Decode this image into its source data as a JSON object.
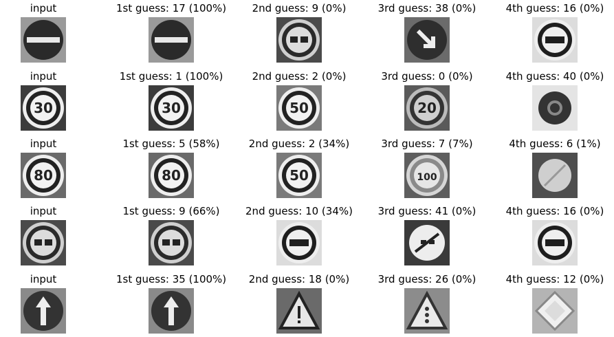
{
  "rows": [
    {
      "input": "input",
      "guesses": [
        "1st guess: 17 (100%)",
        "2nd guess: 9 (0%)",
        "3rd guess: 38 (0%)",
        "4th guess: 16 (0%)"
      ],
      "thumb_icons": [
        "no-entry-sign-icon",
        "no-entry-sign-icon",
        "no-passing-sign-icon",
        "keep-right-sign-icon",
        "no-trucks-passing-sign-icon"
      ]
    },
    {
      "input": "input",
      "guesses": [
        "1st guess: 1 (100%)",
        "2nd guess: 2 (0%)",
        "3rd guess: 0 (0%)",
        "4th guess: 40 (0%)"
      ],
      "thumb_icons": [
        "speed-30-sign-icon",
        "speed-30-sign-icon",
        "speed-50-sign-icon",
        "speed-20-sign-icon",
        "roundabout-sign-icon"
      ]
    },
    {
      "input": "input",
      "guesses": [
        "1st guess: 5 (58%)",
        "2nd guess: 2 (34%)",
        "3rd guess: 7 (7%)",
        "4th guess: 6 (1%)"
      ],
      "thumb_icons": [
        "speed-80-sign-icon",
        "speed-80-sign-icon",
        "speed-50-sign-icon",
        "speed-100-sign-icon",
        "end-speed-80-sign-icon"
      ]
    },
    {
      "input": "input",
      "guesses": [
        "1st guess: 9 (66%)",
        "2nd guess: 10 (34%)",
        "3rd guess: 41 (0%)",
        "4th guess: 16 (0%)"
      ],
      "thumb_icons": [
        "no-passing-sign-icon",
        "no-passing-sign-icon",
        "no-trucks-passing-sign-icon",
        "end-no-passing-sign-icon",
        "no-trucks-passing-sign-icon"
      ]
    },
    {
      "input": "input",
      "guesses": [
        "1st guess: 35 (100%)",
        "2nd guess: 18 (0%)",
        "3rd guess: 26 (0%)",
        "4th guess: 12 (0%)"
      ],
      "thumb_icons": [
        "ahead-only-sign-icon",
        "ahead-only-sign-icon",
        "general-caution-sign-icon",
        "traffic-signals-sign-icon",
        "priority-road-sign-icon"
      ]
    }
  ]
}
